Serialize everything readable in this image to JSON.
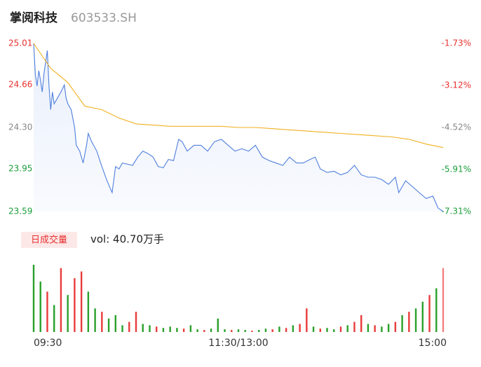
{
  "chart_data": {
    "type": "line",
    "title": "掌阅科技",
    "subtitle": "603533.SH",
    "xlim": [
      0,
      240
    ],
    "xticks": [
      {
        "value": 0,
        "label": "09:30"
      },
      {
        "value": 120,
        "label": "11:30/13:00"
      },
      {
        "value": 240,
        "label": "15:00"
      }
    ],
    "ylim": [
      23.59,
      25.01
    ],
    "yticks": [
      {
        "value": 25.01,
        "label": "25.01"
      },
      {
        "value": 24.66,
        "label": "24.66"
      },
      {
        "value": 24.3,
        "label": "24.30"
      },
      {
        "value": 23.95,
        "label": "23.95"
      },
      {
        "value": 23.59,
        "label": "23.59"
      }
    ],
    "ytick_colors": [
      "#e8312f",
      "#e8312f",
      "#888888",
      "#1a9e3a",
      "#1a9e3a"
    ],
    "y2lim": [
      -7.31,
      -1.73
    ],
    "y2ticks": [
      {
        "value": -1.73,
        "label": "-1.73%"
      },
      {
        "value": -3.12,
        "label": "-3.12%"
      },
      {
        "value": -4.52,
        "label": "-4.52%"
      },
      {
        "value": -5.91,
        "label": "-5.91%"
      },
      {
        "value": -7.31,
        "label": "-7.31%"
      }
    ],
    "series": [
      {
        "color": "#4f7fdc",
        "x": [
          0,
          1,
          2,
          3,
          4,
          5,
          6,
          8,
          9,
          10,
          11,
          12,
          14,
          16,
          18,
          19,
          20,
          22,
          24,
          25,
          27,
          29,
          31,
          32,
          34,
          37,
          40,
          43,
          46,
          48,
          50,
          52,
          55,
          58,
          61,
          64,
          67,
          70,
          73,
          76,
          79,
          82,
          85,
          87,
          90,
          94,
          98,
          102,
          106,
          110,
          114,
          118,
          122,
          126,
          130,
          134,
          138,
          142,
          146,
          150,
          154,
          158,
          162,
          165,
          168,
          172,
          176,
          180,
          184,
          188,
          192,
          196,
          200,
          204,
          208,
          212,
          214,
          218,
          222,
          226,
          230,
          234,
          237,
          240
        ],
        "values": [
          25.01,
          24.75,
          24.65,
          24.78,
          24.7,
          24.6,
          24.75,
          24.95,
          24.65,
          24.45,
          24.6,
          24.5,
          24.55,
          24.6,
          24.66,
          24.55,
          24.5,
          24.45,
          24.3,
          24.15,
          24.1,
          24.0,
          24.15,
          24.25,
          24.18,
          24.1,
          23.97,
          23.85,
          23.75,
          23.97,
          23.95,
          24.0,
          23.99,
          23.98,
          24.05,
          24.1,
          24.08,
          24.05,
          23.97,
          23.96,
          24.03,
          24.02,
          24.2,
          24.18,
          24.1,
          24.15,
          24.15,
          24.1,
          24.18,
          24.2,
          24.15,
          24.1,
          24.12,
          24.1,
          24.15,
          24.05,
          24.02,
          24.0,
          23.98,
          24.05,
          24.0,
          24.0,
          24.03,
          24.05,
          23.95,
          23.92,
          23.93,
          23.9,
          23.92,
          23.98,
          23.9,
          23.88,
          23.88,
          23.86,
          23.82,
          23.88,
          23.75,
          23.85,
          23.8,
          23.75,
          23.7,
          23.72,
          23.62,
          23.59
        ]
      },
      {
        "color": "#f0b020",
        "x": [
          0,
          10,
          20,
          30,
          40,
          50,
          60,
          70,
          80,
          90,
          100,
          110,
          120,
          130,
          140,
          150,
          160,
          170,
          180,
          190,
          200,
          210,
          220,
          230,
          240
        ],
        "values": [
          25.01,
          24.8,
          24.68,
          24.48,
          24.45,
          24.38,
          24.33,
          24.32,
          24.31,
          24.31,
          24.31,
          24.31,
          24.3,
          24.3,
          24.29,
          24.28,
          24.27,
          24.26,
          24.25,
          24.24,
          24.23,
          24.22,
          24.2,
          24.16,
          24.13
        ]
      }
    ],
    "volume": {
      "label": "日成交量",
      "summary": "vol: 40.70万手",
      "ylim": [
        0,
        100
      ],
      "x": [
        0,
        4,
        8,
        12,
        16,
        20,
        24,
        28,
        32,
        36,
        40,
        44,
        48,
        52,
        56,
        60,
        64,
        68,
        72,
        76,
        80,
        84,
        88,
        92,
        96,
        100,
        104,
        108,
        112,
        116,
        120,
        124,
        128,
        132,
        136,
        140,
        144,
        148,
        152,
        156,
        160,
        164,
        168,
        172,
        176,
        180,
        184,
        188,
        192,
        196,
        200,
        204,
        208,
        212,
        216,
        220,
        224,
        228,
        232,
        236,
        240
      ],
      "values": [
        100,
        75,
        60,
        40,
        95,
        55,
        80,
        90,
        60,
        35,
        30,
        20,
        25,
        10,
        15,
        30,
        12,
        10,
        8,
        6,
        8,
        6,
        5,
        10,
        4,
        3,
        5,
        20,
        4,
        3,
        4,
        3,
        2,
        3,
        5,
        4,
        8,
        6,
        10,
        12,
        35,
        8,
        5,
        6,
        4,
        8,
        10,
        15,
        25,
        12,
        10,
        8,
        12,
        15,
        25,
        30,
        35,
        45,
        55,
        65,
        95
      ],
      "colors": [
        "#2aa02a",
        "#2aa02a",
        "#e83b3b",
        "#2aa02a",
        "#e83b3b",
        "#2aa02a",
        "#e83b3b",
        "#e83b3b",
        "#2aa02a",
        "#2aa02a",
        "#e83b3b",
        "#2aa02a",
        "#2aa02a",
        "#2aa02a",
        "#e83b3b",
        "#e83b3b",
        "#2aa02a",
        "#2aa02a",
        "#e83b3b",
        "#2aa02a",
        "#2aa02a",
        "#2aa02a",
        "#e83b3b",
        "#2aa02a",
        "#2aa02a",
        "#e83b3b",
        "#2aa02a",
        "#2aa02a",
        "#2aa02a",
        "#e83b3b",
        "#2aa02a",
        "#2aa02a",
        "#e83b3b",
        "#2aa02a",
        "#2aa02a",
        "#e83b3b",
        "#2aa02a",
        "#e83b3b",
        "#2aa02a",
        "#e83b3b",
        "#e83b3b",
        "#2aa02a",
        "#e83b3b",
        "#2aa02a",
        "#2aa02a",
        "#e83b3b",
        "#2aa02a",
        "#e83b3b",
        "#e83b3b",
        "#2aa02a",
        "#e83b3b",
        "#2aa02a",
        "#2aa02a",
        "#e83b3b",
        "#2aa02a",
        "#e83b3b",
        "#2aa02a",
        "#2aa02a",
        "#e83b3b",
        "#2aa02a",
        "#f08080"
      ]
    }
  }
}
